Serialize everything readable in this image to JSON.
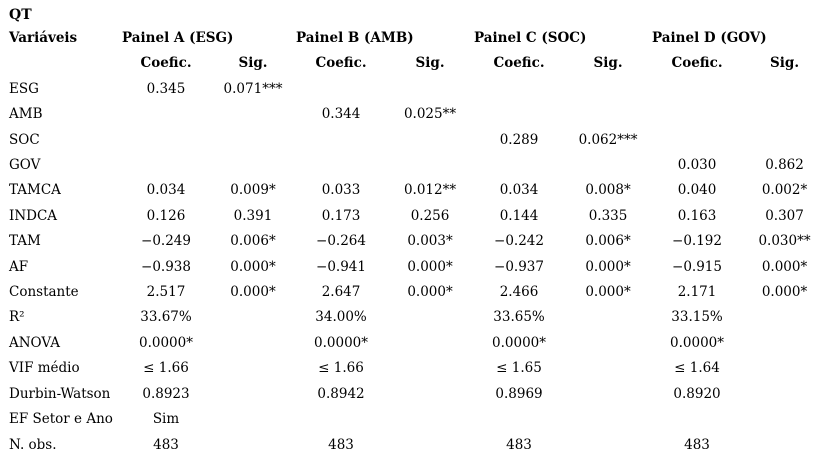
{
  "title": "QT",
  "table": {
    "variable_header": "Variáveis",
    "panels": [
      {
        "label": "Painel A (ESG)"
      },
      {
        "label": "Painel B (AMB)"
      },
      {
        "label": "Painel C (SOC)"
      },
      {
        "label": "Painel D (GOV)"
      }
    ],
    "subheaders": {
      "coef": "Coefic.",
      "sig": "Sig."
    },
    "rows": [
      {
        "label": "ESG",
        "cells": [
          "0.345",
          "0.071***",
          "",
          "",
          "",
          "",
          "",
          ""
        ]
      },
      {
        "label": "AMB",
        "cells": [
          "",
          "",
          "0.344",
          "0.025**",
          "",
          "",
          "",
          ""
        ]
      },
      {
        "label": "SOC",
        "cells": [
          "",
          "",
          "",
          "",
          "0.289",
          "0.062***",
          "",
          ""
        ]
      },
      {
        "label": "GOV",
        "cells": [
          "",
          "",
          "",
          "",
          "",
          "",
          "0.030",
          "0.862"
        ]
      },
      {
        "label": "TAMCA",
        "cells": [
          "0.034",
          "0.009*",
          "0.033",
          "0.012**",
          "0.034",
          "0.008*",
          "0.040",
          "0.002*"
        ]
      },
      {
        "label": "INDCA",
        "cells": [
          "0.126",
          "0.391",
          "0.173",
          "0.256",
          "0.144",
          "0.335",
          "0.163",
          "0.307"
        ]
      },
      {
        "label": "TAM",
        "cells": [
          "−0.249",
          "0.006*",
          "−0.264",
          "0.003*",
          "−0.242",
          "0.006*",
          "−0.192",
          "0.030**"
        ]
      },
      {
        "label": "AF",
        "cells": [
          "−0.938",
          "0.000*",
          "−0.941",
          "0.000*",
          "−0.937",
          "0.000*",
          "−0.915",
          "0.000*"
        ]
      },
      {
        "label": "Constante",
        "cells": [
          "2.517",
          "0.000*",
          "2.647",
          "0.000*",
          "2.466",
          "0.000*",
          "2.171",
          "0.000*"
        ]
      },
      {
        "label": "R²",
        "cells": [
          "33.67%",
          "",
          "34.00%",
          "",
          "33.65%",
          "",
          "33.15%",
          ""
        ]
      },
      {
        "label": "ANOVA",
        "cells": [
          "0.0000*",
          "",
          "0.0000*",
          "",
          "0.0000*",
          "",
          "0.0000*",
          ""
        ]
      },
      {
        "label": "VIF médio",
        "cells": [
          "≤ 1.66",
          "",
          "≤ 1.66",
          "",
          "≤ 1.65",
          "",
          "≤ 1.64",
          ""
        ]
      },
      {
        "label": "Durbin-Watson",
        "cells": [
          "0.8923",
          "",
          "0.8942",
          "",
          "0.8969",
          "",
          "0.8920",
          ""
        ]
      },
      {
        "label": "EF Setor e Ano",
        "cells": [
          "Sim",
          "",
          "",
          "",
          "",
          "",
          "",
          ""
        ]
      },
      {
        "label": "N. obs.",
        "cells": [
          "483",
          "",
          "483",
          "",
          "483",
          "",
          "483",
          ""
        ]
      }
    ]
  },
  "colors": {
    "background": "#ffffff",
    "text": "#000000"
  }
}
